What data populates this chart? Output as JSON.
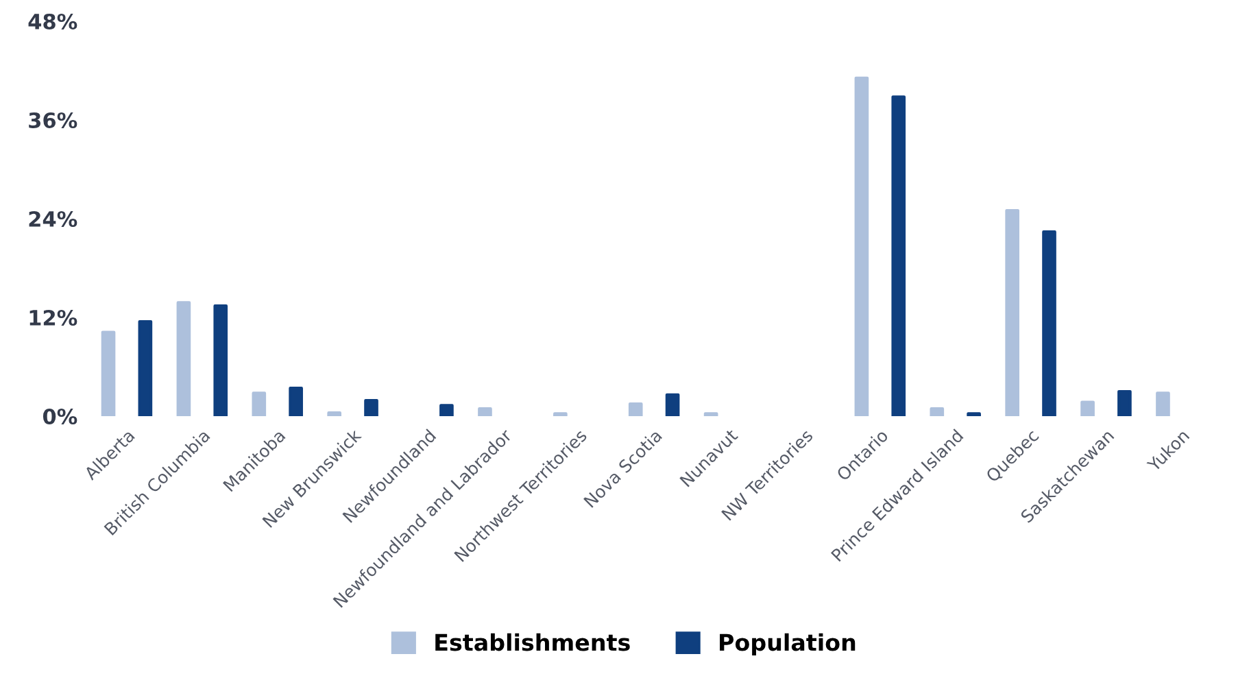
{
  "chart_data": {
    "type": "bar",
    "categories": [
      "Alberta",
      "British Columbia",
      "Manitoba",
      "New Brunswick",
      "Newfoundland",
      "Newfoundland and Labrador",
      "Northwest Territories",
      "Nova Scotia",
      "Nunavut",
      "NW Territories",
      "Ontario",
      "Prince Edward Island",
      "Quebec",
      "Saskatchewan",
      "Yukon"
    ],
    "series": [
      {
        "name": "Establishments",
        "color": "#adc0dc",
        "values": [
          10.2,
          13.8,
          2.8,
          0.4,
          null,
          0.9,
          0.3,
          1.5,
          0.3,
          null,
          41.1,
          0.9,
          25.0,
          1.7,
          2.8
        ]
      },
      {
        "name": "Population",
        "color": "#0f3f7f",
        "values": [
          11.5,
          13.4,
          3.4,
          1.9,
          1.3,
          null,
          null,
          2.6,
          null,
          null,
          38.8,
          0.3,
          22.4,
          3.0,
          null
        ]
      }
    ],
    "ylim": [
      0,
      48
    ],
    "yticks": [
      {
        "value": 0,
        "label": "0%"
      },
      {
        "value": 12,
        "label": "12%"
      },
      {
        "value": 24,
        "label": "24%"
      },
      {
        "value": 36,
        "label": "36%"
      },
      {
        "value": 48,
        "label": "48%"
      }
    ],
    "grid": false,
    "legend": "bottom"
  }
}
